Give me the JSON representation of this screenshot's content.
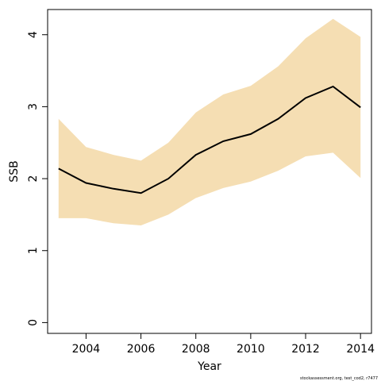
{
  "chart_data": {
    "type": "area",
    "title": "",
    "xlabel": "Year",
    "ylabel": "SSB",
    "xlim": [
      2002.6,
      2014.4
    ],
    "ylim": [
      -0.15,
      4.35
    ],
    "x_ticks": [
      2004,
      2006,
      2008,
      2010,
      2012,
      2014
    ],
    "x_tick_labels": [
      "2004",
      "2006",
      "2008",
      "2010",
      "2012",
      "2014"
    ],
    "y_ticks": [
      0,
      1,
      2,
      3,
      4
    ],
    "y_tick_labels": [
      "0",
      "1",
      "2",
      "3",
      "4"
    ],
    "grid": false,
    "legend": "none",
    "x": [
      2003,
      2004,
      2005,
      2006,
      2007,
      2008,
      2009,
      2010,
      2011,
      2012,
      2013,
      2014
    ],
    "series": [
      {
        "values": [
          2.14,
          1.94,
          1.86,
          1.8,
          2.0,
          2.33,
          2.52,
          2.62,
          2.83,
          3.12,
          3.28,
          2.99
        ]
      }
    ],
    "band": {
      "lower": [
        1.45,
        1.45,
        1.38,
        1.35,
        1.5,
        1.73,
        1.87,
        1.96,
        2.11,
        2.31,
        2.36,
        2.01
      ],
      "upper": [
        2.83,
        2.44,
        2.33,
        2.25,
        2.5,
        2.92,
        3.17,
        3.29,
        3.56,
        3.95,
        4.22,
        3.97
      ]
    },
    "colors": {
      "line": "#000000",
      "band": "#f5deb3",
      "frame": "#000000"
    },
    "footnote": "stockassessment.org, test_cod2, r7477"
  }
}
